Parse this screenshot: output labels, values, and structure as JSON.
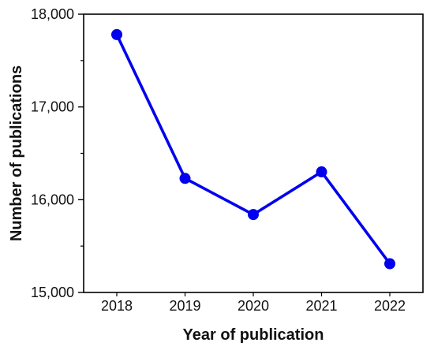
{
  "chart_data": {
    "type": "line",
    "title": "",
    "xlabel": "Year of publication",
    "ylabel": "Number of publications",
    "categories": [
      "2018",
      "2019",
      "2020",
      "2021",
      "2022"
    ],
    "series": [
      {
        "values": [
          17780,
          16230,
          15840,
          16300,
          15310
        ],
        "color": "#0000ee"
      }
    ],
    "ylim": [
      15000,
      18000
    ],
    "y_ticks": [
      15000,
      16000,
      17000,
      18000
    ],
    "y_tick_labels": [
      "15,000",
      "16,000",
      "17,000",
      "18,000"
    ],
    "grid": false,
    "legend": "none"
  }
}
